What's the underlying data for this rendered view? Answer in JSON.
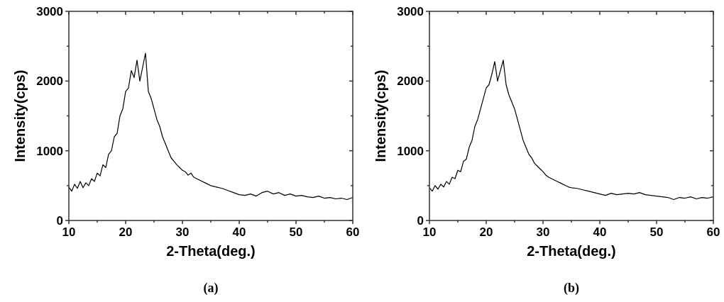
{
  "chart_data": [
    {
      "type": "line",
      "title": "(a)",
      "xlabel": "2-Theta(deg.)",
      "ylabel": "Intensity(cps)",
      "xlim": [
        10,
        60
      ],
      "ylim": [
        0,
        3000
      ],
      "xticks": [
        10,
        {
          "value": 15,
          "label": null
        },
        20,
        {
          "value": 25,
          "label": null
        },
        30,
        {
          "value": 35,
          "label": null
        },
        40,
        {
          "value": 45,
          "label": null
        },
        50,
        {
          "value": 55,
          "label": null
        },
        60
      ],
      "yticks": [
        0,
        {
          "value": 500,
          "label": null
        },
        1000,
        {
          "value": 1500,
          "label": null
        },
        2000,
        {
          "value": 2500,
          "label": null
        },
        3000
      ],
      "x": [
        10,
        10.5,
        11,
        11.5,
        12,
        12.5,
        13,
        13.5,
        14,
        14.5,
        15,
        15.5,
        16,
        16.5,
        17,
        17.5,
        18,
        18.5,
        19,
        19.5,
        20,
        20.5,
        21,
        21.5,
        22,
        22.5,
        23,
        23.5,
        24,
        24.5,
        25,
        25.5,
        26,
        26.5,
        27,
        27.5,
        28,
        28.5,
        29,
        29.5,
        30,
        30.5,
        31,
        31.5,
        32,
        32.5,
        33,
        33.5,
        34,
        34.5,
        35,
        36,
        37,
        38,
        39,
        40,
        41,
        42,
        43,
        44,
        45,
        46,
        47,
        48,
        49,
        50,
        51,
        52,
        53,
        54,
        55,
        56,
        57,
        58,
        59,
        60
      ],
      "series": [
        {
          "color": "#000000",
          "values": [
            480,
            420,
            520,
            460,
            560,
            470,
            540,
            500,
            600,
            560,
            680,
            640,
            800,
            760,
            950,
            1000,
            1200,
            1250,
            1500,
            1600,
            1850,
            1900,
            2150,
            2050,
            2300,
            2000,
            2200,
            2400,
            1850,
            1750,
            1600,
            1450,
            1350,
            1200,
            1100,
            1000,
            900,
            850,
            800,
            760,
            720,
            700,
            650,
            680,
            620,
            600,
            580,
            560,
            540,
            520,
            500,
            480,
            460,
            430,
            400,
            370,
            360,
            380,
            350,
            400,
            420,
            380,
            400,
            360,
            380,
            350,
            360,
            340,
            330,
            350,
            320,
            330,
            310,
            320,
            300,
            330
          ]
        }
      ]
    },
    {
      "type": "line",
      "title": "(b)",
      "xlabel": "2-Theta(deg.)",
      "ylabel": "Intensity(cps)",
      "xlim": [
        10,
        60
      ],
      "ylim": [
        0,
        3000
      ],
      "xticks": [
        10,
        {
          "value": 15,
          "label": null
        },
        20,
        {
          "value": 25,
          "label": null
        },
        30,
        {
          "value": 35,
          "label": null
        },
        40,
        {
          "value": 45,
          "label": null
        },
        50,
        {
          "value": 55,
          "label": null
        },
        60
      ],
      "yticks": [
        0,
        {
          "value": 500,
          "label": null
        },
        1000,
        {
          "value": 1500,
          "label": null
        },
        2000,
        {
          "value": 2500,
          "label": null
        },
        3000
      ],
      "x": [
        10,
        10.5,
        11,
        11.5,
        12,
        12.5,
        13,
        13.5,
        14,
        14.5,
        15,
        15.5,
        16,
        16.5,
        17,
        17.5,
        18,
        18.5,
        19,
        19.5,
        20,
        20.5,
        21,
        21.5,
        22,
        22.5,
        23,
        23.5,
        24,
        24.5,
        25,
        25.5,
        26,
        26.5,
        27,
        27.5,
        28,
        28.5,
        29,
        29.5,
        30,
        30.5,
        31,
        31.5,
        32,
        32.5,
        33,
        33.5,
        34,
        34.5,
        35,
        36,
        37,
        38,
        39,
        40,
        41,
        42,
        43,
        44,
        45,
        46,
        47,
        48,
        49,
        50,
        51,
        52,
        53,
        54,
        55,
        56,
        57,
        58,
        59,
        60
      ],
      "series": [
        {
          "color": "#000000",
          "values": [
            470,
            420,
            500,
            450,
            520,
            480,
            560,
            520,
            620,
            600,
            720,
            700,
            850,
            880,
            1050,
            1150,
            1350,
            1450,
            1600,
            1750,
            1900,
            1950,
            2100,
            2280,
            2000,
            2150,
            2300,
            1950,
            1800,
            1700,
            1600,
            1450,
            1300,
            1150,
            1050,
            950,
            900,
            820,
            780,
            740,
            700,
            650,
            620,
            600,
            580,
            560,
            540,
            520,
            500,
            480,
            470,
            460,
            440,
            420,
            400,
            380,
            360,
            390,
            370,
            380,
            390,
            380,
            400,
            370,
            360,
            350,
            340,
            330,
            300,
            330,
            320,
            340,
            310,
            330,
            320,
            340
          ]
        }
      ]
    }
  ]
}
